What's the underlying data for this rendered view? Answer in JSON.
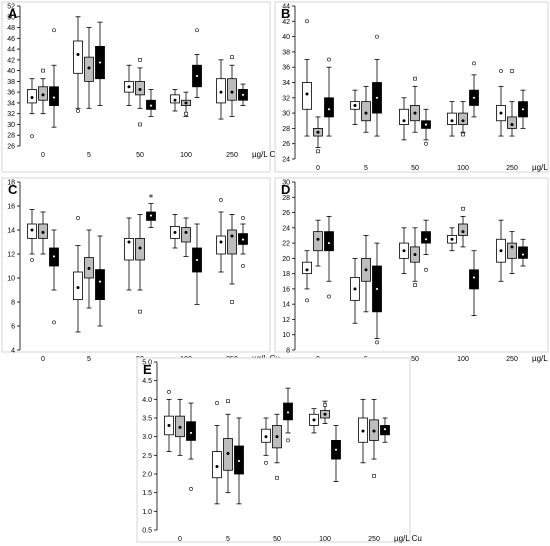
{
  "figure": {
    "unit_label": "µg/L Cu",
    "group_fills": [
      "#ffffff",
      "#bdbdbd",
      "#000000"
    ]
  },
  "chart_data": [
    {
      "panel": "A",
      "type": "box",
      "categories": [
        "0",
        "5",
        "50",
        "100",
        "250"
      ],
      "ylim": [
        26,
        52
      ],
      "yticks": [
        26,
        28,
        30,
        32,
        34,
        36,
        38,
        40,
        42,
        44,
        46,
        48,
        50,
        52
      ],
      "groups": [
        [
          {
            "median": 35,
            "q1": 34,
            "q3": 36.5,
            "min": 32,
            "max": 38.5,
            "outliers": [
              27.8
            ]
          },
          {
            "median": 35.5,
            "q1": 34.5,
            "q3": 37,
            "min": 32,
            "max": 38.5,
            "outliers": [
              40
            ]
          },
          {
            "median": 35,
            "q1": 33.5,
            "q3": 37,
            "min": 29.5,
            "max": 41,
            "outliers": [
              47.5
            ]
          }
        ],
        [
          {
            "median": 43,
            "q1": 39.5,
            "q3": 45.5,
            "min": 33,
            "max": 50,
            "outliers": [
              32.5
            ]
          },
          {
            "median": 40.5,
            "q1": 38,
            "q3": 42.5,
            "min": 33,
            "max": 48,
            "outliers": []
          },
          {
            "median": 41.5,
            "q1": 38.5,
            "q3": 44.5,
            "min": 33.5,
            "max": 49,
            "outliers": []
          }
        ],
        [
          {
            "median": 37,
            "q1": 36,
            "q3": 38,
            "min": 33.5,
            "max": 41,
            "outliers": []
          },
          {
            "median": 36.5,
            "q1": 35.5,
            "q3": 38,
            "min": 33,
            "max": 40.5,
            "outliers": [
              42,
              30
            ]
          },
          {
            "median": 33.5,
            "q1": 32.8,
            "q3": 34.5,
            "min": 31.5,
            "max": 36.5,
            "outliers": []
          }
        ],
        [
          {
            "median": 34.5,
            "q1": 34,
            "q3": 35.5,
            "min": 32.5,
            "max": 36.5,
            "outliers": []
          },
          {
            "median": 34,
            "q1": 33.5,
            "q3": 34.5,
            "min": 31.5,
            "max": 36,
            "outliers": [
              32
            ]
          },
          {
            "median": 39,
            "q1": 37,
            "q3": 41,
            "min": 35,
            "max": 43,
            "outliers": [
              47.5
            ]
          }
        ],
        [
          {
            "median": 36,
            "q1": 34,
            "q3": 38.5,
            "min": 31,
            "max": 42,
            "outliers": []
          },
          {
            "median": 36,
            "q1": 34.5,
            "q3": 38.5,
            "min": 31.5,
            "max": 41,
            "outliers": [
              42.5
            ]
          },
          {
            "median": 35.5,
            "q1": 34.5,
            "q3": 36.5,
            "min": 33.5,
            "max": 37.5,
            "outliers": []
          }
        ]
      ]
    },
    {
      "panel": "B",
      "type": "box",
      "categories": [
        "0",
        "5",
        "50",
        "100",
        "250"
      ],
      "ylim": [
        24,
        44
      ],
      "yticks": [
        24,
        26,
        28,
        30,
        32,
        34,
        36,
        38,
        40,
        42,
        44
      ],
      "groups": [
        [
          {
            "median": 32.5,
            "q1": 30.5,
            "q3": 34,
            "min": 27,
            "max": 37,
            "outliers": [
              42
            ]
          },
          {
            "median": 27.5,
            "q1": 27,
            "q3": 28,
            "min": 25.5,
            "max": 29.5,
            "outliers": [
              25
            ]
          },
          {
            "median": 30.5,
            "q1": 29.5,
            "q3": 32,
            "min": 27,
            "max": 36,
            "outliers": [
              37
            ]
          }
        ],
        [
          {
            "median": 31,
            "q1": 30.5,
            "q3": 31.5,
            "min": 28.5,
            "max": 33,
            "outliers": []
          },
          {
            "median": 30,
            "q1": 29,
            "q3": 31.5,
            "min": 27.5,
            "max": 33.5,
            "outliers": []
          },
          {
            "median": 32,
            "q1": 30,
            "q3": 34,
            "min": 27,
            "max": 37,
            "outliers": [
              40
            ]
          }
        ],
        [
          {
            "median": 29,
            "q1": 28.5,
            "q3": 30.5,
            "min": 26.5,
            "max": 32,
            "outliers": []
          },
          {
            "median": 30,
            "q1": 29,
            "q3": 31,
            "min": 27.5,
            "max": 33.5,
            "outliers": [
              34.5
            ]
          },
          {
            "median": 28.5,
            "q1": 28,
            "q3": 29,
            "min": 26.5,
            "max": 30.5,
            "outliers": [
              26
            ]
          }
        ],
        [
          {
            "median": 29,
            "q1": 28.5,
            "q3": 30,
            "min": 27,
            "max": 31.5,
            "outliers": []
          },
          {
            "median": 29,
            "q1": 28.5,
            "q3": 30,
            "min": 27.5,
            "max": 31.5,
            "outliers": [
              27.2
            ]
          },
          {
            "median": 32,
            "q1": 31,
            "q3": 33,
            "min": 29.5,
            "max": 35,
            "outliers": [
              36.5
            ]
          }
        ],
        [
          {
            "median": 30,
            "q1": 29,
            "q3": 31,
            "min": 27,
            "max": 33.5,
            "outliers": [
              35.5
            ]
          },
          {
            "median": 28.5,
            "q1": 28,
            "q3": 29.5,
            "min": 27,
            "max": 31.5,
            "outliers": [
              35.5
            ]
          },
          {
            "median": 30.5,
            "q1": 29.5,
            "q3": 31.5,
            "min": 28,
            "max": 33,
            "outliers": []
          }
        ]
      ]
    },
    {
      "panel": "C",
      "type": "box",
      "categories": [
        "0",
        "5",
        "50",
        "100",
        "250"
      ],
      "ylim": [
        4,
        18
      ],
      "yticks": [
        4,
        6,
        8,
        10,
        12,
        14,
        16,
        18
      ],
      "groups": [
        [
          {
            "median": 14,
            "q1": 13.3,
            "q3": 14.5,
            "min": 12,
            "max": 15.7,
            "outliers": [
              11.5
            ]
          },
          {
            "median": 13.8,
            "q1": 13.3,
            "q3": 14.5,
            "min": 12,
            "max": 15.5,
            "outliers": []
          },
          {
            "median": 11.8,
            "q1": 11,
            "q3": 12.5,
            "min": 9,
            "max": 14,
            "outliers": [
              6.3
            ]
          }
        ],
        [
          {
            "median": 9.2,
            "q1": 8.2,
            "q3": 10.5,
            "min": 5.5,
            "max": 12.7,
            "outliers": [
              15
            ]
          },
          {
            "median": 10.8,
            "q1": 10,
            "q3": 11.7,
            "min": 7.5,
            "max": 14,
            "outliers": []
          },
          {
            "median": 9.7,
            "q1": 8.2,
            "q3": 10.7,
            "min": 6,
            "max": 13.5,
            "outliers": []
          }
        ],
        [
          {
            "median": 13,
            "q1": 11.5,
            "q3": 13.3,
            "min": 9,
            "max": 15,
            "outliers": []
          },
          {
            "median": 12.5,
            "q1": 11.5,
            "q3": 13.3,
            "min": 9,
            "max": 15.3,
            "outliers": [
              7.2
            ]
          },
          {
            "median": 15.2,
            "q1": 14.8,
            "q3": 15.5,
            "min": 14.2,
            "max": 16.2,
            "outliers": []
          }
        ],
        [
          {
            "median": 13.8,
            "q1": 13.3,
            "q3": 14.3,
            "min": 12.5,
            "max": 15.3,
            "outliers": []
          },
          {
            "median": 13.8,
            "q1": 13,
            "q3": 14.2,
            "min": 11.8,
            "max": 15,
            "outliers": []
          },
          {
            "median": 11.5,
            "q1": 10.5,
            "q3": 12.5,
            "min": 7.8,
            "max": 14.5,
            "outliers": []
          }
        ],
        [
          {
            "median": 13,
            "q1": 12,
            "q3": 13.5,
            "min": 10.5,
            "max": 15.5,
            "outliers": [
              16.5
            ]
          },
          {
            "median": 13.5,
            "q1": 12,
            "q3": 14,
            "min": 9.5,
            "max": 15.3,
            "outliers": [
              8
            ]
          },
          {
            "median": 13.2,
            "q1": 12.8,
            "q3": 13.7,
            "min": 12,
            "max": 14.5,
            "outliers": [
              11,
              15
            ]
          }
        ]
      ],
      "annotations": [
        {
          "text": "*",
          "category": "50",
          "group": 3,
          "y": 16.8
        }
      ]
    },
    {
      "panel": "D",
      "type": "box",
      "categories": [
        "0",
        "5",
        "50",
        "100",
        "250"
      ],
      "ylim": [
        8,
        30
      ],
      "yticks": [
        8,
        10,
        12,
        14,
        16,
        18,
        20,
        22,
        24,
        26,
        28,
        30
      ],
      "groups": [
        [
          {
            "median": 18.5,
            "q1": 18,
            "q3": 19.5,
            "min": 16,
            "max": 21,
            "outliers": [
              14.5
            ]
          },
          {
            "median": 22.5,
            "q1": 21,
            "q3": 23.5,
            "min": 19,
            "max": 25,
            "outliers": []
          },
          {
            "median": 22,
            "q1": 21,
            "q3": 23.5,
            "min": 17,
            "max": 25.5,
            "outliers": [
              15
            ]
          }
        ],
        [
          {
            "median": 16,
            "q1": 14.5,
            "q3": 17.5,
            "min": 11.5,
            "max": 20,
            "outliers": []
          },
          {
            "median": 18.5,
            "q1": 17,
            "q3": 20,
            "min": 13,
            "max": 23,
            "outliers": []
          },
          {
            "median": 16,
            "q1": 13,
            "q3": 19,
            "min": 9.5,
            "max": 22,
            "outliers": [
              9
            ]
          }
        ],
        [
          {
            "median": 21,
            "q1": 20,
            "q3": 22,
            "min": 18,
            "max": 24,
            "outliers": []
          },
          {
            "median": 20.5,
            "q1": 19.5,
            "q3": 21.5,
            "min": 17,
            "max": 24,
            "outliers": [
              16.5
            ]
          },
          {
            "median": 22.5,
            "q1": 22,
            "q3": 23.5,
            "min": 20.5,
            "max": 25,
            "outliers": [
              18.5
            ]
          }
        ],
        [
          {
            "median": 22.5,
            "q1": 22,
            "q3": 23,
            "min": 21,
            "max": 24,
            "outliers": []
          },
          {
            "median": 23.5,
            "q1": 23,
            "q3": 24.5,
            "min": 21.5,
            "max": 25.5,
            "outliers": [
              26.5
            ]
          },
          {
            "median": 17.5,
            "q1": 16,
            "q3": 18.5,
            "min": 12.5,
            "max": 21,
            "outliers": []
          }
        ],
        [
          {
            "median": 21,
            "q1": 19.5,
            "q3": 22.5,
            "min": 17,
            "max": 25,
            "outliers": []
          },
          {
            "median": 21.5,
            "q1": 20,
            "q3": 22,
            "min": 18,
            "max": 23.5,
            "outliers": []
          },
          {
            "median": 20.5,
            "q1": 20,
            "q3": 21.5,
            "min": 19,
            "max": 22.5,
            "outliers": []
          }
        ]
      ]
    },
    {
      "panel": "E",
      "type": "box",
      "categories": [
        "0",
        "5",
        "50",
        "100",
        "250"
      ],
      "ylim": [
        0.5,
        5.0
      ],
      "yticks": [
        0.5,
        1.0,
        1.5,
        2.0,
        2.5,
        3.0,
        3.5,
        4.0,
        4.5,
        5.0
      ],
      "ytick_labels": [
        "0.5",
        "1.0",
        "1.5",
        "2.0",
        "2.5",
        "3.0",
        "3.5",
        "4.0",
        "4.5",
        "5.0"
      ],
      "groups": [
        [
          {
            "median": 3.3,
            "q1": 3.05,
            "q3": 3.55,
            "min": 2.6,
            "max": 4.0,
            "outliers": [
              4.2
            ]
          },
          {
            "median": 3.25,
            "q1": 3.0,
            "q3": 3.55,
            "min": 2.5,
            "max": 4.0,
            "outliers": []
          },
          {
            "median": 3.1,
            "q1": 2.9,
            "q3": 3.4,
            "min": 2.4,
            "max": 3.9,
            "outliers": [
              1.6
            ]
          }
        ],
        [
          {
            "median": 2.2,
            "q1": 1.9,
            "q3": 2.6,
            "min": 1.2,
            "max": 3.3,
            "outliers": [
              3.9
            ]
          },
          {
            "median": 2.55,
            "q1": 2.1,
            "q3": 2.95,
            "min": 1.5,
            "max": 3.6,
            "outliers": [
              3.95
            ]
          },
          {
            "median": 2.35,
            "q1": 2.0,
            "q3": 2.75,
            "min": 1.2,
            "max": 3.5,
            "outliers": []
          }
        ],
        [
          {
            "median": 3.0,
            "q1": 2.85,
            "q3": 3.2,
            "min": 2.5,
            "max": 3.5,
            "outliers": [
              2.3
            ]
          },
          {
            "median": 3.0,
            "q1": 2.7,
            "q3": 3.3,
            "min": 2.3,
            "max": 3.6,
            "outliers": [
              1.9
            ]
          },
          {
            "median": 3.65,
            "q1": 3.45,
            "q3": 3.9,
            "min": 3.1,
            "max": 4.3,
            "outliers": [
              2.9
            ]
          }
        ],
        [
          {
            "median": 3.45,
            "q1": 3.3,
            "q3": 3.6,
            "min": 3.1,
            "max": 3.75,
            "outliers": []
          },
          {
            "median": 3.6,
            "q1": 3.5,
            "q3": 3.7,
            "min": 3.35,
            "max": 3.95,
            "outliers": [
              3.85
            ]
          },
          {
            "median": 2.65,
            "q1": 2.4,
            "q3": 2.9,
            "min": 1.8,
            "max": 3.3,
            "outliers": []
          }
        ],
        [
          {
            "median": 3.15,
            "q1": 2.85,
            "q3": 3.5,
            "min": 2.3,
            "max": 4.0,
            "outliers": []
          },
          {
            "median": 3.15,
            "q1": 2.9,
            "q3": 3.45,
            "min": 2.4,
            "max": 4.0,
            "outliers": [
              1.95
            ]
          },
          {
            "median": 3.2,
            "q1": 3.05,
            "q3": 3.3,
            "min": 2.85,
            "max": 3.5,
            "outliers": []
          }
        ]
      ]
    }
  ]
}
